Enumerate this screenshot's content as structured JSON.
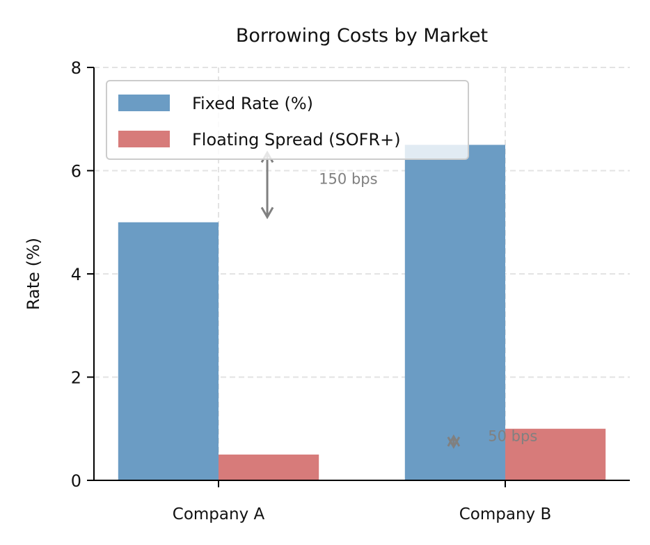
{
  "chart_data": {
    "type": "bar",
    "title": "Borrowing Costs by Market",
    "xlabel": "",
    "ylabel": "Rate (%)",
    "ylim": [
      0,
      8
    ],
    "yticks": [
      "0",
      "2",
      "4",
      "6",
      "8"
    ],
    "grid": true,
    "legend_placement": "top-left",
    "categories": [
      "Company A",
      "Company B"
    ],
    "series": [
      {
        "name": "Fixed Rate (%)",
        "values": [
          5.0,
          6.5
        ],
        "color": "#6b9cc4"
      },
      {
        "name": "Floating Spread (SOFR+)",
        "values": [
          0.5,
          1.0
        ],
        "color": "#d77b7a"
      }
    ],
    "annotations": [
      {
        "text": "150 bps",
        "arrow_x": 0.17,
        "arrow_from": 6.35,
        "arrow_to": 5.1,
        "text_x": 0.35,
        "text_y": 5.85,
        "color": "#808080"
      },
      {
        "text": "50 bps",
        "arrow_x": 0.82,
        "arrow_from": 0.85,
        "arrow_to": 0.65,
        "text_x": 0.94,
        "text_y": 0.87,
        "color": "#808080"
      }
    ]
  }
}
